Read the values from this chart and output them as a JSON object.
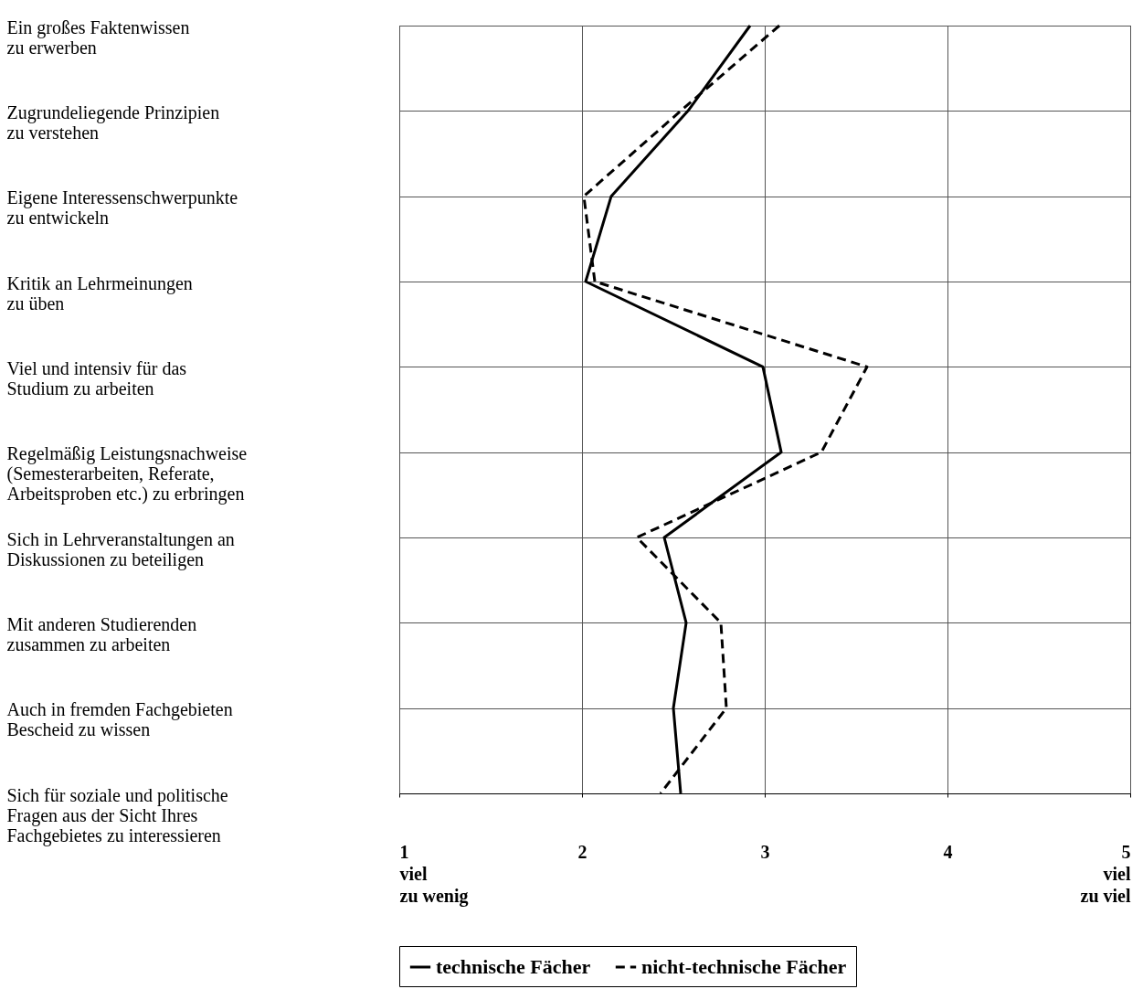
{
  "chart_data": {
    "type": "line",
    "categories": [
      "Ein großes Faktenwissen\nzu erwerben",
      "Zugrundeliegende Prinzipien\nzu verstehen",
      "Eigene Interessenschwerpunkte\nzu entwickeln",
      "Kritik an Lehrmeinungen\nzu üben",
      "Viel und intensiv für das\nStudium zu arbeiten",
      "Regelmäßig Leistungsnachweise\n(Semesterarbeiten, Referate,\nArbeitsproben etc.) zu erbringen",
      "Sich in Lehrveranstaltungen an\nDiskussionen zu beteiligen",
      "Mit anderen Studierenden\nzusammen zu arbeiten",
      "Auch in fremden Fachgebieten\nBescheid zu wissen",
      "Sich für soziale und politische\nFragen aus der Sicht Ihres\nFachgebietes zu interessieren"
    ],
    "orientation": "horizontal",
    "series": [
      {
        "name": "technische Fächer",
        "color": "#000000",
        "line_style": "solid",
        "values": [
          2.92,
          2.58,
          2.16,
          2.02,
          2.99,
          3.09,
          2.45,
          2.57,
          2.5,
          2.54
        ]
      },
      {
        "name": "nicht-technische Fächer",
        "color": "#000000",
        "line_style": "dashed",
        "values": [
          3.08,
          2.54,
          2.01,
          2.07,
          3.56,
          3.31,
          2.3,
          2.76,
          2.79,
          2.43
        ]
      }
    ],
    "xlim": [
      1,
      5
    ],
    "xticks": [
      {
        "value": 1,
        "label": "1\nviel\nzu wenig"
      },
      2,
      3,
      4,
      {
        "value": 5,
        "label": "5\nviel\nzu viel"
      }
    ],
    "grid": true,
    "legend": "bottom"
  }
}
